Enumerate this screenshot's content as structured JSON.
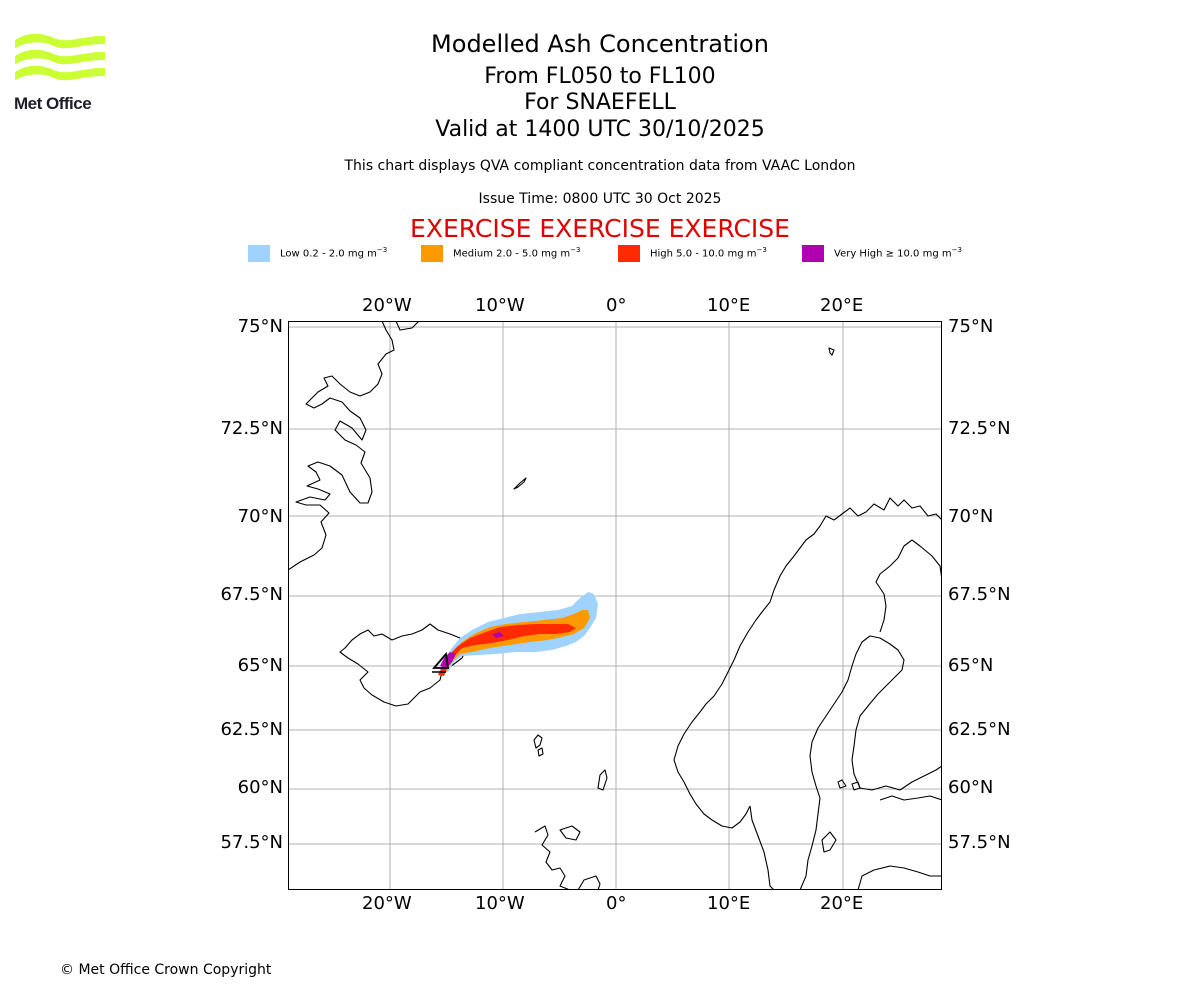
{
  "logo": {
    "text": "Met Office",
    "wave_color": "#ccff33"
  },
  "header": {
    "title": "Modelled Ash Concentration",
    "levels": "From FL050 to FL100",
    "volcano": "For SNAEFELL",
    "valid": "Valid at 1400 UTC 30/10/2025",
    "subtitle": "This chart displays QVA compliant concentration data from VAAC London",
    "issue_time": "Issue Time: 0800 UTC 30 Oct 2025",
    "exercise": "EXERCISE EXERCISE EXERCISE"
  },
  "legend": [
    {
      "label": "Low 0.2 - 2.0 mg m",
      "unit_sup": "−3",
      "color": "#a0d2ff"
    },
    {
      "label": "Medium 2.0 - 5.0 mg m",
      "unit_sup": "−3",
      "color": "#ff9900"
    },
    {
      "label": "High 5.0 - 10.0 mg m",
      "unit_sup": "−3",
      "color": "#ff2a00"
    },
    {
      "label": "Very High  ≥  10.0 mg m",
      "unit_sup": "−3",
      "color": "#b000b0"
    }
  ],
  "map": {
    "lon_labels": [
      "20°W",
      "10°W",
      "0°",
      "10°E",
      "20°E"
    ],
    "lat_labels": [
      "75°N",
      "72.5°N",
      "70°N",
      "67.5°N",
      "65°N",
      "62.5°N",
      "60°N",
      "57.5°N"
    ]
  },
  "footer": {
    "copyright": "© Met Office Crown Copyright"
  }
}
